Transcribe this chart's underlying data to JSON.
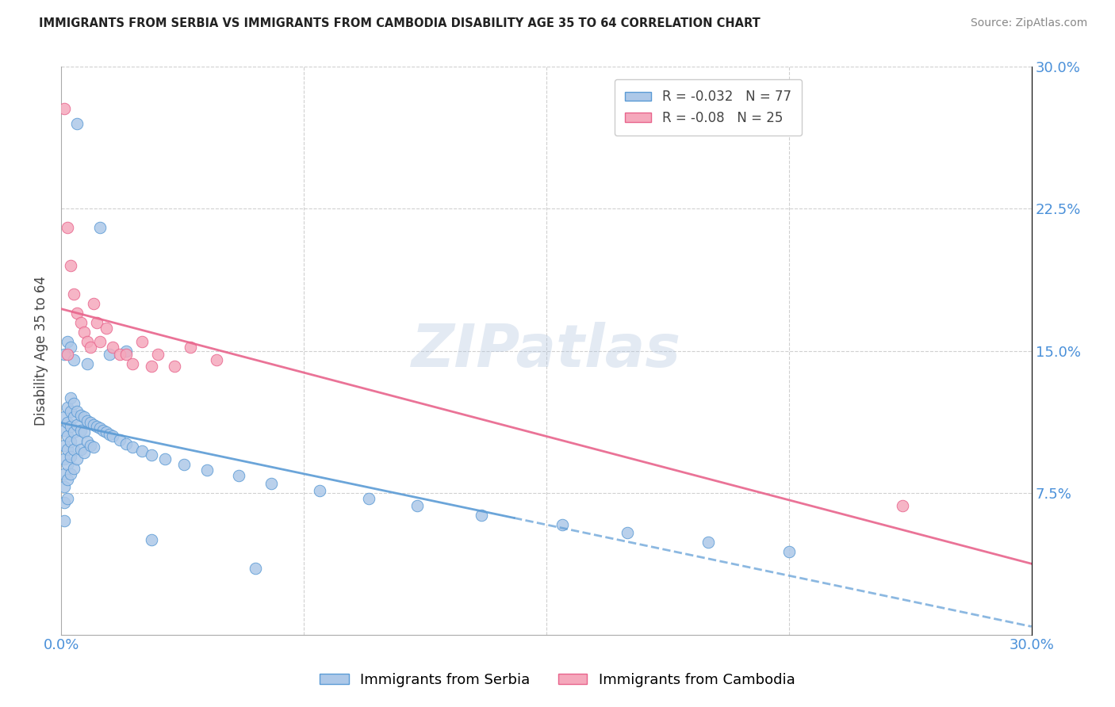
{
  "title": "IMMIGRANTS FROM SERBIA VS IMMIGRANTS FROM CAMBODIA DISABILITY AGE 35 TO 64 CORRELATION CHART",
  "source": "Source: ZipAtlas.com",
  "ylabel": "Disability Age 35 to 64",
  "xlim": [
    0.0,
    0.3
  ],
  "ylim": [
    0.0,
    0.3
  ],
  "serbia_R": -0.032,
  "serbia_N": 77,
  "cambodia_R": -0.08,
  "cambodia_N": 25,
  "serbia_color": "#adc8e8",
  "cambodia_color": "#f5a8bc",
  "serbia_line_color": "#5b9bd5",
  "cambodia_line_color": "#e8648c",
  "watermark": "ZIPatlas",
  "serbia_x": [
    0.001,
    0.001,
    0.001,
    0.001,
    0.001,
    0.001,
    0.001,
    0.001,
    0.002,
    0.002,
    0.002,
    0.002,
    0.002,
    0.002,
    0.002,
    0.003,
    0.003,
    0.003,
    0.003,
    0.003,
    0.003,
    0.004,
    0.004,
    0.004,
    0.004,
    0.004,
    0.005,
    0.005,
    0.005,
    0.005,
    0.006,
    0.006,
    0.006,
    0.007,
    0.007,
    0.007,
    0.008,
    0.008,
    0.009,
    0.009,
    0.01,
    0.01,
    0.011,
    0.012,
    0.013,
    0.014,
    0.015,
    0.016,
    0.018,
    0.02,
    0.022,
    0.025,
    0.028,
    0.032,
    0.038,
    0.045,
    0.055,
    0.065,
    0.08,
    0.095,
    0.11,
    0.13,
    0.155,
    0.175,
    0.2,
    0.225,
    0.005,
    0.012,
    0.028,
    0.06,
    0.008,
    0.015,
    0.02,
    0.002,
    0.003,
    0.001,
    0.004
  ],
  "serbia_y": [
    0.115,
    0.108,
    0.1,
    0.093,
    0.085,
    0.078,
    0.07,
    0.06,
    0.12,
    0.112,
    0.105,
    0.098,
    0.09,
    0.082,
    0.072,
    0.125,
    0.118,
    0.11,
    0.102,
    0.094,
    0.085,
    0.122,
    0.115,
    0.107,
    0.098,
    0.088,
    0.118,
    0.111,
    0.103,
    0.093,
    0.116,
    0.108,
    0.098,
    0.115,
    0.107,
    0.096,
    0.113,
    0.102,
    0.112,
    0.1,
    0.111,
    0.099,
    0.11,
    0.109,
    0.108,
    0.107,
    0.106,
    0.105,
    0.103,
    0.101,
    0.099,
    0.097,
    0.095,
    0.093,
    0.09,
    0.087,
    0.084,
    0.08,
    0.076,
    0.072,
    0.068,
    0.063,
    0.058,
    0.054,
    0.049,
    0.044,
    0.27,
    0.215,
    0.05,
    0.035,
    0.143,
    0.148,
    0.15,
    0.155,
    0.152,
    0.148,
    0.145
  ],
  "cambodia_x": [
    0.001,
    0.002,
    0.003,
    0.004,
    0.005,
    0.006,
    0.007,
    0.008,
    0.009,
    0.01,
    0.011,
    0.012,
    0.014,
    0.016,
    0.018,
    0.02,
    0.022,
    0.025,
    0.028,
    0.03,
    0.035,
    0.04,
    0.048,
    0.26,
    0.002
  ],
  "cambodia_y": [
    0.278,
    0.215,
    0.195,
    0.18,
    0.17,
    0.165,
    0.16,
    0.155,
    0.152,
    0.175,
    0.165,
    0.155,
    0.162,
    0.152,
    0.148,
    0.148,
    0.143,
    0.155,
    0.142,
    0.148,
    0.142,
    0.152,
    0.145,
    0.068,
    0.148
  ]
}
